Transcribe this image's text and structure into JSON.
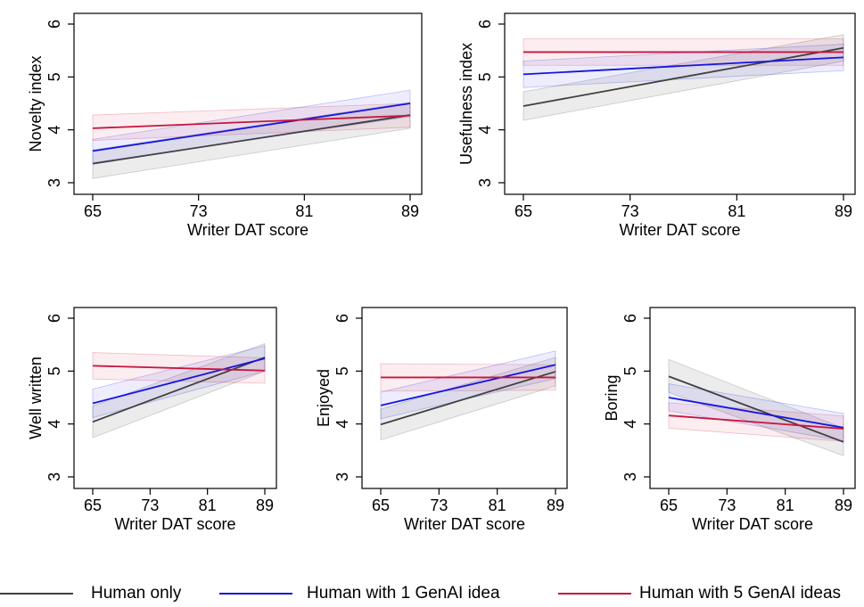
{
  "colors": {
    "human_only": "#404040",
    "human_1": "#1515e0",
    "human_5": "#c8143c",
    "frame": "#000000"
  },
  "legend": {
    "human_only": "Human only",
    "human_1": "Human with 1 GenAI idea",
    "human_5": "Human with 5 GenAI ideas"
  },
  "chart_data": [
    {
      "type": "line",
      "ylabel": "Novelty index",
      "xlabel": "Writer DAT score",
      "xlim": [
        65,
        89
      ],
      "ylim": [
        3,
        6
      ],
      "xticks": [
        65,
        73,
        81,
        89
      ],
      "yticks": [
        3,
        4,
        5,
        6
      ],
      "series": [
        {
          "name": "Human only",
          "x": [
            65,
            89
          ],
          "y": [
            3.36,
            4.28
          ],
          "ci_low": [
            3.08,
            4.03
          ],
          "ci_high": [
            3.62,
            4.52
          ]
        },
        {
          "name": "Human with 1 GenAI idea",
          "x": [
            65,
            89
          ],
          "y": [
            3.6,
            4.5
          ],
          "ci_low": [
            3.38,
            4.25
          ],
          "ci_high": [
            3.82,
            4.75
          ]
        },
        {
          "name": "Human with 5 GenAI ideas",
          "x": [
            65,
            89
          ],
          "y": [
            4.03,
            4.27
          ],
          "ci_low": [
            3.8,
            4.05
          ],
          "ci_high": [
            4.28,
            4.5
          ]
        }
      ]
    },
    {
      "type": "line",
      "ylabel": "Usefulness index",
      "xlabel": "Writer DAT score",
      "xlim": [
        65,
        89
      ],
      "ylim": [
        3,
        6
      ],
      "xticks": [
        65,
        73,
        81,
        89
      ],
      "yticks": [
        3,
        4,
        5,
        6
      ],
      "series": [
        {
          "name": "Human only",
          "x": [
            65,
            89
          ],
          "y": [
            4.45,
            5.55
          ],
          "ci_low": [
            4.18,
            5.3
          ],
          "ci_high": [
            4.72,
            5.8
          ]
        },
        {
          "name": "Human with 1 GenAI idea",
          "x": [
            65,
            89
          ],
          "y": [
            5.05,
            5.37
          ],
          "ci_low": [
            4.8,
            5.12
          ],
          "ci_high": [
            5.3,
            5.62
          ]
        },
        {
          "name": "Human with 5 GenAI ideas",
          "x": [
            65,
            89
          ],
          "y": [
            5.47,
            5.47
          ],
          "ci_low": [
            5.22,
            5.22
          ],
          "ci_high": [
            5.72,
            5.72
          ]
        }
      ]
    },
    {
      "type": "line",
      "ylabel": "Well written",
      "xlabel": "Writer DAT score",
      "xlim": [
        65,
        89
      ],
      "ylim": [
        3,
        6
      ],
      "xticks": [
        65,
        73,
        81,
        89
      ],
      "yticks": [
        3,
        4,
        5,
        6
      ],
      "series": [
        {
          "name": "Human only",
          "x": [
            65,
            89
          ],
          "y": [
            4.04,
            5.26
          ],
          "ci_low": [
            3.74,
            5.0
          ],
          "ci_high": [
            4.34,
            5.52
          ]
        },
        {
          "name": "Human with 1 GenAI idea",
          "x": [
            65,
            89
          ],
          "y": [
            4.39,
            5.24
          ],
          "ci_low": [
            4.12,
            5.0
          ],
          "ci_high": [
            4.66,
            5.48
          ]
        },
        {
          "name": "Human with 5 GenAI ideas",
          "x": [
            65,
            89
          ],
          "y": [
            5.1,
            5.01
          ],
          "ci_low": [
            4.85,
            4.77
          ],
          "ci_high": [
            5.35,
            5.25
          ]
        }
      ]
    },
    {
      "type": "line",
      "ylabel": "Enjoyed",
      "xlabel": "Writer DAT score",
      "xlim": [
        65,
        89
      ],
      "ylim": [
        3,
        6
      ],
      "xticks": [
        65,
        73,
        81,
        89
      ],
      "yticks": [
        3,
        4,
        5,
        6
      ],
      "series": [
        {
          "name": "Human only",
          "x": [
            65,
            89
          ],
          "y": [
            3.99,
            4.99
          ],
          "ci_low": [
            3.7,
            4.72
          ],
          "ci_high": [
            4.28,
            5.26
          ]
        },
        {
          "name": "Human with 1 GenAI idea",
          "x": [
            65,
            89
          ],
          "y": [
            4.35,
            5.12
          ],
          "ci_low": [
            4.1,
            4.86
          ],
          "ci_high": [
            4.6,
            5.38
          ]
        },
        {
          "name": "Human with 5 GenAI ideas",
          "x": [
            65,
            89
          ],
          "y": [
            4.88,
            4.88
          ],
          "ci_low": [
            4.62,
            4.64
          ],
          "ci_high": [
            5.14,
            5.12
          ]
        }
      ]
    },
    {
      "type": "line",
      "ylabel": "Boring",
      "xlabel": "Writer DAT score",
      "xlim": [
        65,
        89
      ],
      "ylim": [
        3,
        6
      ],
      "xticks": [
        65,
        73,
        81,
        89
      ],
      "yticks": [
        3,
        4,
        5,
        6
      ],
      "series": [
        {
          "name": "Human only",
          "x": [
            65,
            89
          ],
          "y": [
            4.9,
            3.66
          ],
          "ci_low": [
            4.6,
            3.4
          ],
          "ci_high": [
            5.22,
            3.92
          ]
        },
        {
          "name": "Human with 1 GenAI idea",
          "x": [
            65,
            89
          ],
          "y": [
            4.5,
            3.93
          ],
          "ci_low": [
            4.25,
            3.68
          ],
          "ci_high": [
            4.76,
            4.2
          ]
        },
        {
          "name": "Human with 5 GenAI ideas",
          "x": [
            65,
            89
          ],
          "y": [
            4.16,
            3.91
          ],
          "ci_low": [
            3.92,
            3.67
          ],
          "ci_high": [
            4.4,
            4.15
          ]
        }
      ]
    }
  ]
}
